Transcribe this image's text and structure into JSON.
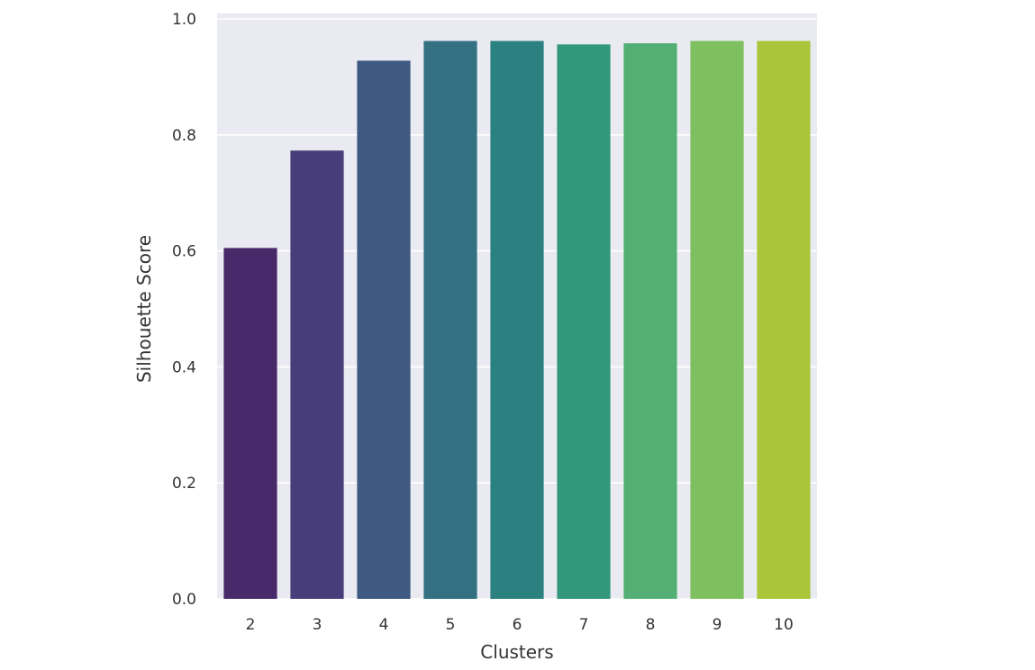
{
  "chart_data": {
    "type": "bar",
    "title": "",
    "xlabel": "Clusters",
    "ylabel": "Silhouette Score",
    "categories": [
      "2",
      "3",
      "4",
      "5",
      "6",
      "7",
      "8",
      "9",
      "10"
    ],
    "values": [
      0.605,
      0.773,
      0.928,
      0.962,
      0.962,
      0.956,
      0.958,
      0.962,
      0.962
    ],
    "ylim": [
      0,
      1.0
    ],
    "yticks": [
      "0.0",
      "0.2",
      "0.4",
      "0.6",
      "0.8",
      "1.0"
    ],
    "grid": true,
    "legend": "none",
    "background_color": "#eaeaf2",
    "grid_color": "#ffffff",
    "colors": [
      "#482a6a",
      "#483d7b",
      "#3f5a82",
      "#337081",
      "#2a8180",
      "#33977c",
      "#53af73",
      "#7ebf5f",
      "#abc53a"
    ]
  }
}
